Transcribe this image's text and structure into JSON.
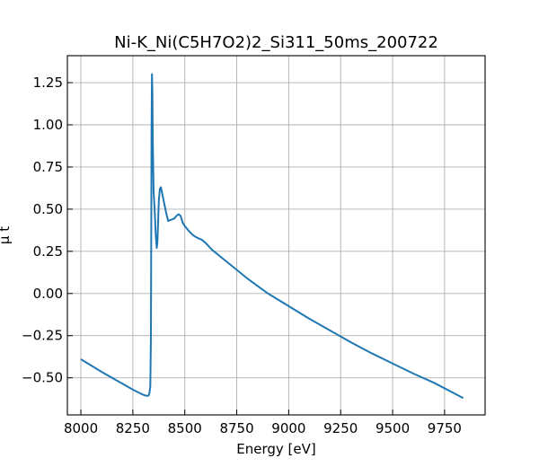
{
  "chart_data": {
    "type": "line",
    "title": "Ni-K_Ni(C5H7O2)2_Si311_50ms_200722",
    "xlabel": "Energy [eV]",
    "ylabel": "μ t",
    "xlim": [
      7935,
      9945
    ],
    "ylim": [
      -0.72,
      1.41
    ],
    "grid": true,
    "x_ticks": [
      8000,
      8250,
      8500,
      8750,
      9000,
      9250,
      9500,
      9750
    ],
    "x_tick_labels": [
      "8000",
      "8250",
      "8500",
      "8750",
      "9000",
      "9250",
      "9500",
      "9750"
    ],
    "y_ticks": [
      -0.5,
      -0.25,
      0.0,
      0.25,
      0.5,
      0.75,
      1.0,
      1.25
    ],
    "y_tick_labels": [
      "−0.50",
      "−0.25",
      "0.00",
      "0.25",
      "0.50",
      "0.75",
      "1.00",
      "1.25"
    ],
    "series": [
      {
        "color": "#1f77b4",
        "x": [
          8000,
          8100,
          8200,
          8250,
          8290,
          8310,
          8320,
          8326,
          8330,
          8334,
          8337,
          8339,
          8340,
          8342,
          8344,
          8346,
          8350,
          8355,
          8360,
          8365,
          8368,
          8371,
          8375,
          8380,
          8385,
          8390,
          8400,
          8410,
          8420,
          8430,
          8440,
          8450,
          8460,
          8470,
          8480,
          8490,
          8500,
          8520,
          8540,
          8560,
          8580,
          8600,
          8630,
          8700,
          8800,
          8900,
          9000,
          9100,
          9200,
          9300,
          9400,
          9500,
          9600,
          9700,
          9840
        ],
        "y": [
          -0.39,
          -0.465,
          -0.535,
          -0.57,
          -0.595,
          -0.605,
          -0.607,
          -0.605,
          -0.59,
          -0.55,
          -0.25,
          0.5,
          0.95,
          1.3,
          1.2,
          0.9,
          0.6,
          0.5,
          0.35,
          0.27,
          0.3,
          0.4,
          0.55,
          0.62,
          0.63,
          0.6,
          0.54,
          0.48,
          0.43,
          0.435,
          0.44,
          0.445,
          0.46,
          0.47,
          0.46,
          0.42,
          0.4,
          0.37,
          0.345,
          0.33,
          0.32,
          0.3,
          0.26,
          0.19,
          0.09,
          0.0,
          -0.075,
          -0.15,
          -0.22,
          -0.29,
          -0.355,
          -0.415,
          -0.475,
          -0.53,
          -0.62
        ]
      }
    ]
  }
}
